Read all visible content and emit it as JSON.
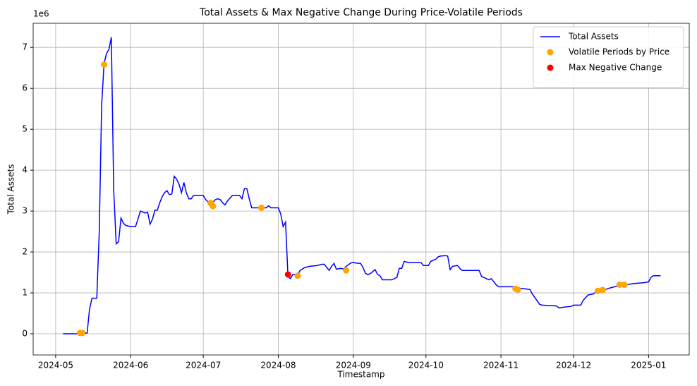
{
  "chart_data": {
    "type": "line",
    "title": "Total Assets & Max Negative Change During Price-Volatile Periods",
    "xlabel": "Timestamp",
    "ylabel": "Total Assets",
    "y_offset_label": "1e6",
    "xlim": [
      -9.3,
      261.8
    ],
    "xticks": [
      {
        "value": 0,
        "label": "2024-05"
      },
      {
        "value": 31,
        "label": "2024-06"
      },
      {
        "value": 61,
        "label": "2024-07"
      },
      {
        "value": 92,
        "label": "2024-08"
      },
      {
        "value": 123,
        "label": "2024-09"
      },
      {
        "value": 153,
        "label": "2024-10"
      },
      {
        "value": 184,
        "label": "2024-11"
      },
      {
        "value": 214,
        "label": "2024-12"
      },
      {
        "value": 245,
        "label": "2025-01"
      }
    ],
    "ylim": [
      -517000,
      7590000
    ],
    "yticks": [
      0,
      {
        "value": 1000000,
        "label": "1"
      },
      {
        "value": 2000000,
        "label": "2"
      },
      {
        "value": 3000000,
        "label": "3"
      },
      {
        "value": 4000000,
        "label": "4"
      },
      {
        "value": 5000000,
        "label": "5"
      },
      {
        "value": 6000000,
        "label": "6"
      },
      {
        "value": 7000000,
        "label": "7"
      }
    ],
    "grid": true,
    "legend": "upper right",
    "series": [
      {
        "name": "Total Assets",
        "type": "line",
        "color": "#0000ff",
        "x": [
          3,
          10,
          13,
          14,
          15,
          17,
          18,
          19,
          20,
          21,
          22,
          23,
          24,
          25,
          26,
          27,
          28,
          29,
          31,
          33,
          34,
          35,
          37,
          38,
          39,
          40,
          41,
          42,
          43,
          44,
          45,
          46,
          47,
          48,
          49,
          50,
          51,
          52,
          53,
          54,
          55,
          56,
          57,
          61,
          62,
          63,
          64,
          66,
          67,
          68,
          69,
          70,
          71,
          73,
          76,
          77,
          78,
          79,
          80,
          81,
          87,
          88,
          89,
          92,
          93,
          94,
          95,
          96,
          97,
          98,
          100,
          101,
          103,
          105,
          108,
          110,
          111,
          113,
          114,
          115,
          116,
          118,
          119,
          120,
          122,
          123,
          124,
          126,
          127,
          128,
          129,
          130,
          132,
          133,
          134,
          135,
          139,
          141,
          142,
          143,
          144,
          146,
          151,
          152,
          154,
          155,
          157,
          158,
          159,
          161,
          162,
          163,
          164,
          166,
          167,
          168,
          175,
          176,
          178,
          179,
          180,
          182,
          183,
          189,
          190,
          194,
          196,
          197,
          199,
          200,
          201,
          207,
          208,
          210,
          213,
          214,
          217,
          218,
          220,
          222,
          224,
          227,
          229,
          231,
          234,
          236,
          239,
          243,
          245,
          246,
          247,
          250
        ],
        "values": [
          0,
          0,
          20000,
          600000,
          870000,
          870000,
          2500000,
          5600000,
          6600000,
          6850000,
          6950000,
          7250000,
          3500000,
          2200000,
          2250000,
          2830000,
          2700000,
          2650000,
          2620000,
          2620000,
          2800000,
          3000000,
          2950000,
          2970000,
          2680000,
          2800000,
          3020000,
          3020000,
          3200000,
          3350000,
          3450000,
          3500000,
          3400000,
          3420000,
          3850000,
          3780000,
          3650000,
          3450000,
          3700000,
          3450000,
          3300000,
          3300000,
          3380000,
          3380000,
          3280000,
          3220000,
          3150000,
          3280000,
          3300000,
          3280000,
          3200000,
          3150000,
          3250000,
          3380000,
          3380000,
          3300000,
          3550000,
          3550000,
          3300000,
          3080000,
          3080000,
          3130000,
          3080000,
          3080000,
          2930000,
          2620000,
          2730000,
          1400000,
          1350000,
          1450000,
          1450000,
          1550000,
          1620000,
          1650000,
          1670000,
          1700000,
          1700000,
          1550000,
          1650000,
          1720000,
          1580000,
          1600000,
          1580000,
          1650000,
          1730000,
          1750000,
          1730000,
          1720000,
          1620000,
          1480000,
          1450000,
          1470000,
          1570000,
          1450000,
          1420000,
          1320000,
          1320000,
          1380000,
          1600000,
          1600000,
          1770000,
          1740000,
          1740000,
          1670000,
          1670000,
          1770000,
          1820000,
          1880000,
          1900000,
          1910000,
          1900000,
          1570000,
          1650000,
          1670000,
          1600000,
          1550000,
          1550000,
          1400000,
          1350000,
          1320000,
          1350000,
          1200000,
          1150000,
          1150000,
          1120000,
          1100000,
          1080000,
          970000,
          800000,
          720000,
          700000,
          680000,
          630000,
          650000,
          670000,
          700000,
          700000,
          820000,
          950000,
          970000,
          1050000,
          1080000,
          1120000,
          1150000,
          1200000,
          1200000,
          1230000,
          1250000,
          1270000,
          1380000,
          1420000,
          1420000
        ]
      },
      {
        "name": "Volatile Periods by Price",
        "type": "scatter",
        "color": "#ffa500",
        "x": [
          10,
          11,
          20,
          64,
          65,
          85,
          100,
          120,
          190,
          191,
          224,
          226,
          233,
          235
        ],
        "values": [
          20000,
          20000,
          6580000,
          3200000,
          3120000,
          3080000,
          1420000,
          1550000,
          1100000,
          1080000,
          1050000,
          1070000,
          1200000,
          1200000
        ]
      },
      {
        "name": "Max Negative Change",
        "type": "scatter",
        "color": "#ff0000",
        "x": [
          96
        ],
        "values": [
          1450000
        ]
      }
    ]
  }
}
